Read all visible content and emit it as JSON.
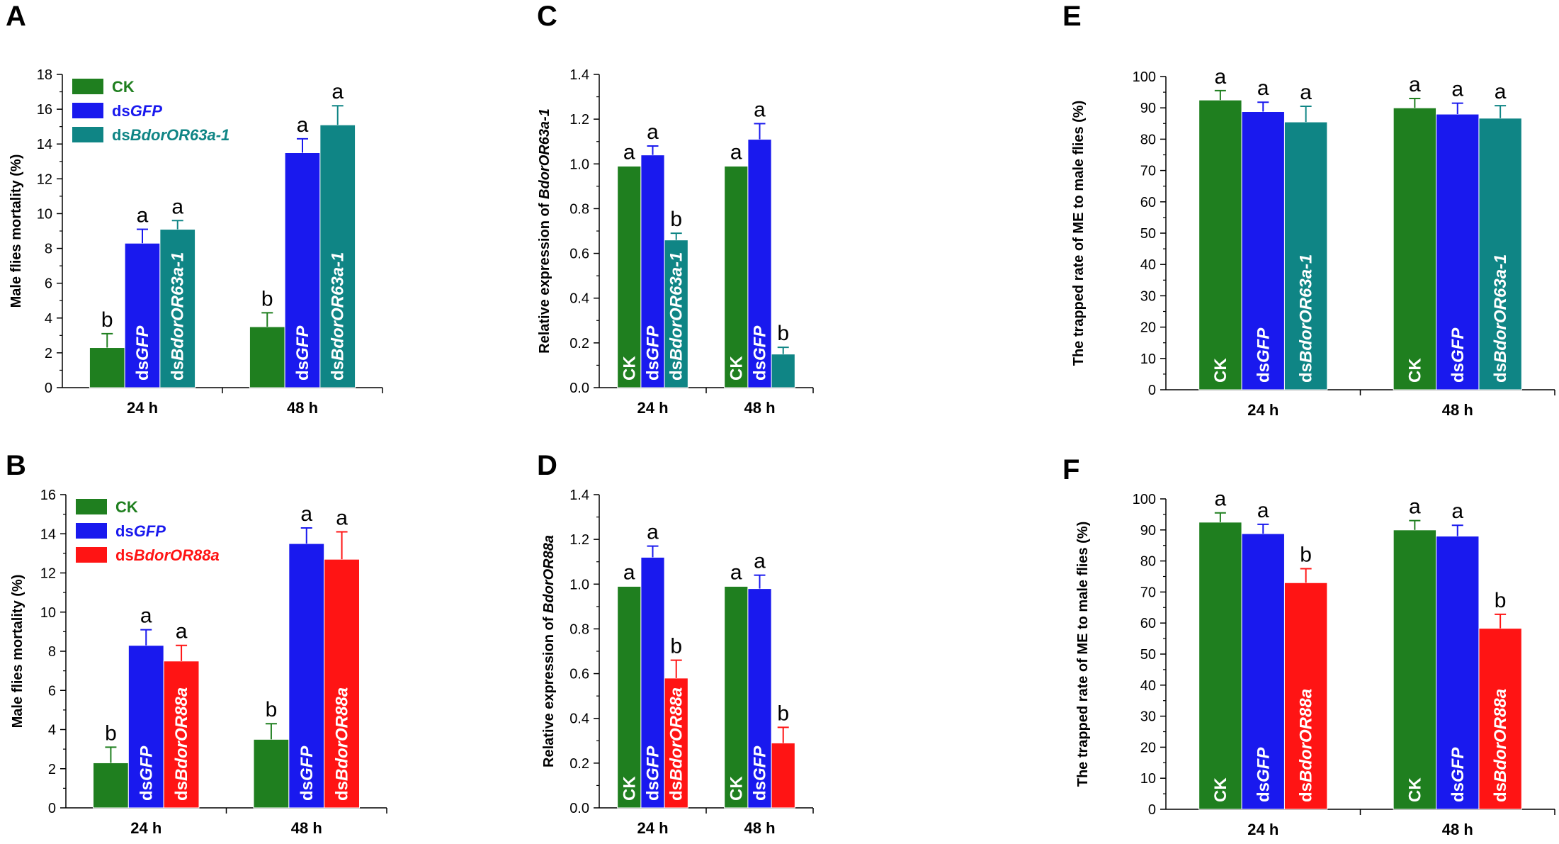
{
  "colors": {
    "CK": "#1f7f1f",
    "dsGFP": "#1919ee",
    "dsBdorOR63a-1": "#0f8585",
    "dsBdorOR88a": "#ff1414"
  },
  "chart_data": [
    {
      "type": "bar",
      "panel": "A",
      "categories": [
        "24 h",
        "48 h"
      ],
      "ylabel": "Male flies mortality (%)",
      "ylabel_italic": "",
      "ylim": [
        0,
        18
      ],
      "yticks": [
        "0",
        "2",
        "4",
        "6",
        "8",
        "10",
        "12",
        "14",
        "16",
        "18"
      ],
      "legend": "top-left",
      "series": [
        {
          "name": "CK",
          "prefix": "",
          "italic": "CK",
          "values": [
            2.3,
            3.5
          ],
          "errors": [
            0.8,
            0.8
          ],
          "letters": [
            "b",
            "b"
          ],
          "color": "#1f7f1f"
        },
        {
          "name": "dsGFP",
          "prefix": "ds",
          "italic": "GFP",
          "values": [
            8.3,
            13.5
          ],
          "errors": [
            0.8,
            0.8
          ],
          "letters": [
            "a",
            "a"
          ],
          "color": "#1919ee"
        },
        {
          "name": "dsBdorOR63a-1",
          "prefix": "ds",
          "italic": "BdorOR63a-1",
          "values": [
            9.1,
            15.1
          ],
          "errors": [
            0.5,
            1.1
          ],
          "letters": [
            "a",
            "a"
          ],
          "color": "#0f8585"
        }
      ]
    },
    {
      "type": "bar",
      "panel": "B",
      "categories": [
        "24 h",
        "48 h"
      ],
      "ylabel": "Male flies mortality (%)",
      "ylabel_italic": "",
      "ylim": [
        0,
        16
      ],
      "yticks": [
        "0",
        "2",
        "4",
        "6",
        "8",
        "10",
        "12",
        "14",
        "16"
      ],
      "legend": "top-left",
      "series": [
        {
          "name": "CK",
          "prefix": "",
          "italic": "CK",
          "values": [
            2.3,
            3.5
          ],
          "errors": [
            0.8,
            0.8
          ],
          "letters": [
            "b",
            "b"
          ],
          "color": "#1f7f1f"
        },
        {
          "name": "dsGFP",
          "prefix": "ds",
          "italic": "GFP",
          "values": [
            8.3,
            13.5
          ],
          "errors": [
            0.8,
            0.8
          ],
          "letters": [
            "a",
            "a"
          ],
          "color": "#1919ee"
        },
        {
          "name": "dsBdorOR88a",
          "prefix": "ds",
          "italic": "BdorOR88a",
          "values": [
            7.5,
            12.7
          ],
          "errors": [
            0.8,
            1.4
          ],
          "letters": [
            "a",
            "a"
          ],
          "color": "#ff1414"
        }
      ]
    },
    {
      "type": "bar",
      "panel": "C",
      "categories": [
        "24 h",
        "48 h"
      ],
      "ylabel": "Relative expression of ",
      "ylabel_italic": "BdorOR63a-1",
      "ylim": [
        0,
        1.4
      ],
      "yticks": [
        "0.0",
        "0.2",
        "0.4",
        "0.6",
        "0.8",
        "1.0",
        "1.2",
        "1.4"
      ],
      "legend": "none",
      "series": [
        {
          "name": "CK",
          "prefix": "",
          "italic": "CK",
          "values": [
            0.99,
            0.99
          ],
          "errors": [
            0,
            0
          ],
          "letters": [
            "a",
            "a"
          ],
          "color": "#1f7f1f"
        },
        {
          "name": "dsGFP",
          "prefix": "ds",
          "italic": "GFP",
          "values": [
            1.04,
            1.11
          ],
          "errors": [
            0.04,
            0.07
          ],
          "letters": [
            "a",
            "a"
          ],
          "color": "#1919ee"
        },
        {
          "name": "dsBdorOR63a-1",
          "prefix": "ds",
          "italic": "BdorOR63a-1",
          "values": [
            0.66,
            0.15
          ],
          "errors": [
            0.03,
            0.03
          ],
          "letters": [
            "b",
            "b"
          ],
          "color": "#0f8585"
        }
      ]
    },
    {
      "type": "bar",
      "panel": "D",
      "categories": [
        "24 h",
        "48 h"
      ],
      "ylabel": "Relative expression of ",
      "ylabel_italic": "BdorOR88a",
      "ylim": [
        0,
        1.4
      ],
      "yticks": [
        "0.0",
        "0.2",
        "0.4",
        "0.6",
        "0.8",
        "1.0",
        "1.2",
        "1.4"
      ],
      "legend": "none",
      "series": [
        {
          "name": "CK",
          "prefix": "",
          "italic": "CK",
          "values": [
            0.99,
            0.99
          ],
          "errors": [
            0,
            0
          ],
          "letters": [
            "a",
            "a"
          ],
          "color": "#1f7f1f"
        },
        {
          "name": "dsGFP",
          "prefix": "ds",
          "italic": "GFP",
          "values": [
            1.12,
            0.98
          ],
          "errors": [
            0.05,
            0.06
          ],
          "letters": [
            "a",
            "a"
          ],
          "color": "#1919ee"
        },
        {
          "name": "dsBdorOR88a",
          "prefix": "ds",
          "italic": "BdorOR88a",
          "values": [
            0.58,
            0.29
          ],
          "errors": [
            0.08,
            0.07
          ],
          "letters": [
            "b",
            "b"
          ],
          "color": "#ff1414"
        }
      ]
    },
    {
      "type": "bar",
      "panel": "E",
      "categories": [
        "24 h",
        "48 h"
      ],
      "ylabel": "The trapped rate of ME to male flies (%)",
      "ylabel_italic": "",
      "ylim": [
        0,
        100
      ],
      "yticks": [
        "0",
        "10",
        "20",
        "30",
        "40",
        "50",
        "60",
        "70",
        "80",
        "90",
        "100"
      ],
      "legend": "none",
      "series": [
        {
          "name": "CK",
          "prefix": "",
          "italic": "CK",
          "values": [
            92.5,
            90.0
          ],
          "errors": [
            3.0,
            3.0
          ],
          "letters": [
            "a",
            "a"
          ],
          "color": "#1f7f1f"
        },
        {
          "name": "dsGFP",
          "prefix": "ds",
          "italic": "GFP",
          "values": [
            88.8,
            88.0
          ],
          "errors": [
            3.0,
            3.5
          ],
          "letters": [
            "a",
            "a"
          ],
          "color": "#1919ee"
        },
        {
          "name": "dsBdorOR63a-1",
          "prefix": "ds",
          "italic": "BdorOR63a-1",
          "values": [
            85.5,
            86.7
          ],
          "errors": [
            5.0,
            4.0
          ],
          "letters": [
            "a",
            "a"
          ],
          "color": "#0f8585"
        }
      ]
    },
    {
      "type": "bar",
      "panel": "F",
      "categories": [
        "24 h",
        "48 h"
      ],
      "ylabel": "The trapped rate of ME to male flies (%)",
      "ylabel_italic": "",
      "ylim": [
        0,
        100
      ],
      "yticks": [
        "0",
        "10",
        "20",
        "30",
        "40",
        "50",
        "60",
        "70",
        "80",
        "90",
        "100"
      ],
      "legend": "none",
      "series": [
        {
          "name": "CK",
          "prefix": "",
          "italic": "CK",
          "values": [
            92.5,
            90.0
          ],
          "errors": [
            3.0,
            3.0
          ],
          "letters": [
            "a",
            "a"
          ],
          "color": "#1f7f1f"
        },
        {
          "name": "dsGFP",
          "prefix": "ds",
          "italic": "GFP",
          "values": [
            88.8,
            88.0
          ],
          "errors": [
            3.0,
            3.5
          ],
          "letters": [
            "a",
            "a"
          ],
          "color": "#1919ee"
        },
        {
          "name": "dsBdorOR88a",
          "prefix": "ds",
          "italic": "BdorOR88a",
          "values": [
            73.0,
            58.3
          ],
          "errors": [
            4.5,
            4.5
          ],
          "letters": [
            "b",
            "b"
          ],
          "color": "#ff1414"
        }
      ]
    }
  ]
}
